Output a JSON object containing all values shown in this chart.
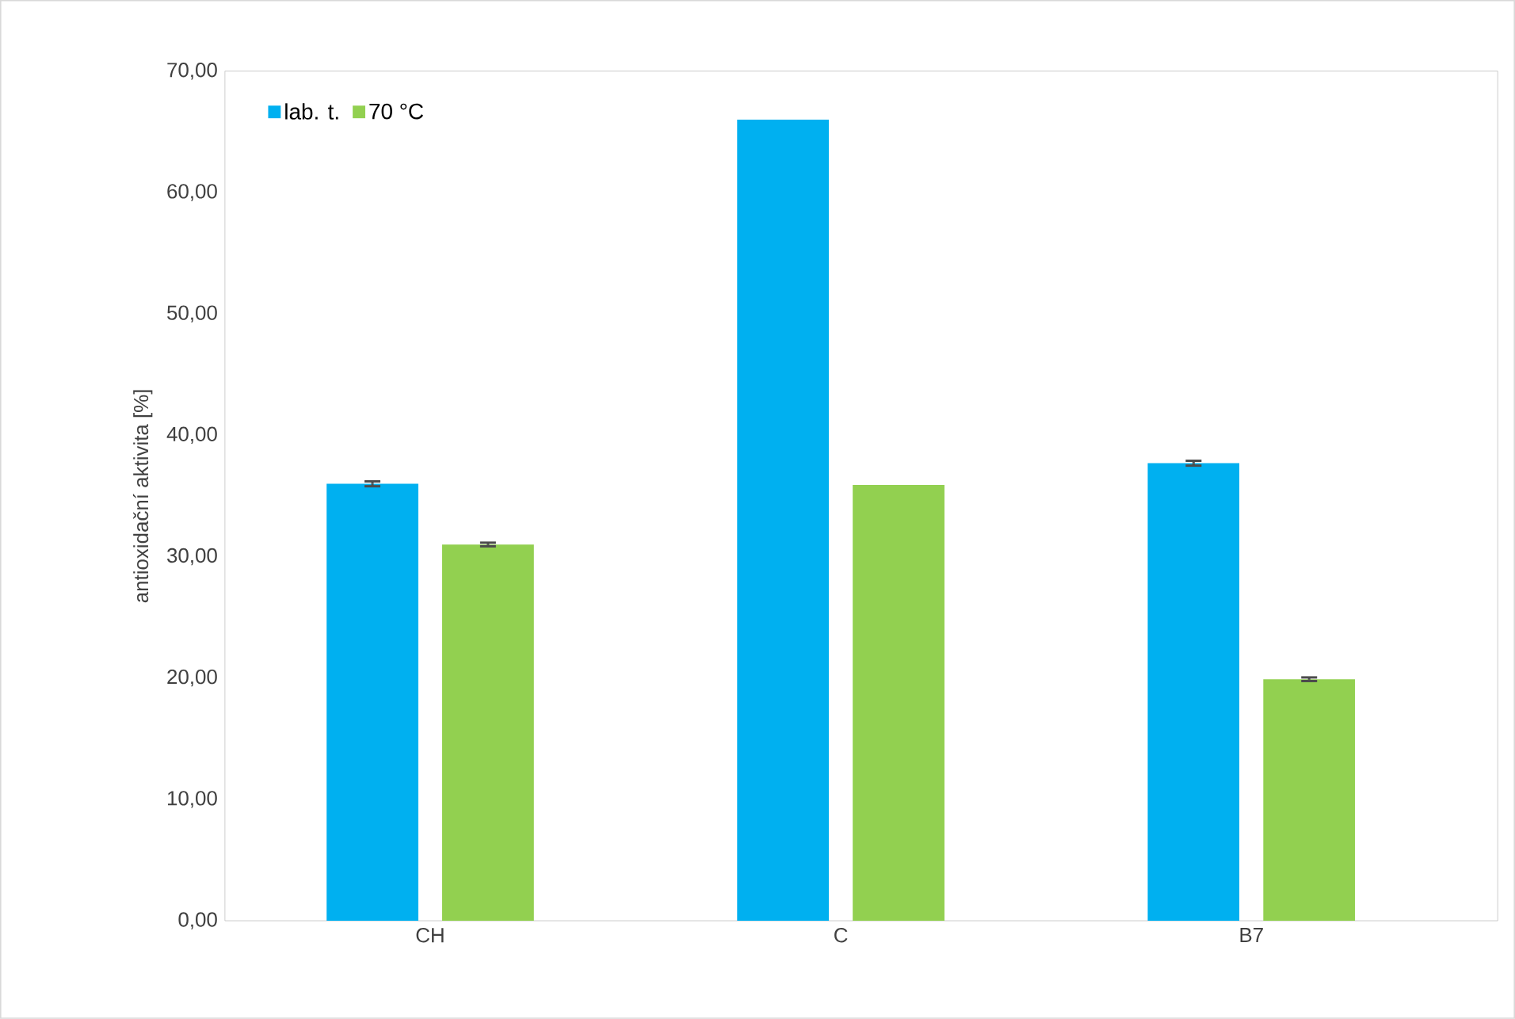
{
  "chart_data": {
    "type": "bar",
    "ylabel": "antioxidační aktivita [%]",
    "categories": [
      "CH",
      "C",
      "B7"
    ],
    "series": [
      {
        "name": "lab. t.",
        "color": "#00b0f0",
        "values": [
          36.0,
          66.0,
          37.7
        ],
        "errors": [
          0.2,
          null,
          0.2
        ]
      },
      {
        "name": "70 °C",
        "color": "#92d050",
        "values": [
          31.0,
          35.9,
          19.9
        ],
        "errors": [
          0.15,
          null,
          0.15
        ]
      }
    ],
    "ylim": [
      0,
      70
    ],
    "yticks": [
      {
        "value": 0,
        "label": "0,00"
      },
      {
        "value": 10,
        "label": "10,00"
      },
      {
        "value": 20,
        "label": "20,00"
      },
      {
        "value": 30,
        "label": "30,00"
      },
      {
        "value": 40,
        "label": "40,00"
      },
      {
        "value": 50,
        "label": "50,00"
      },
      {
        "value": 60,
        "label": "60,00"
      },
      {
        "value": 70,
        "label": "70,00"
      }
    ],
    "grid": false,
    "legend": "top left"
  }
}
